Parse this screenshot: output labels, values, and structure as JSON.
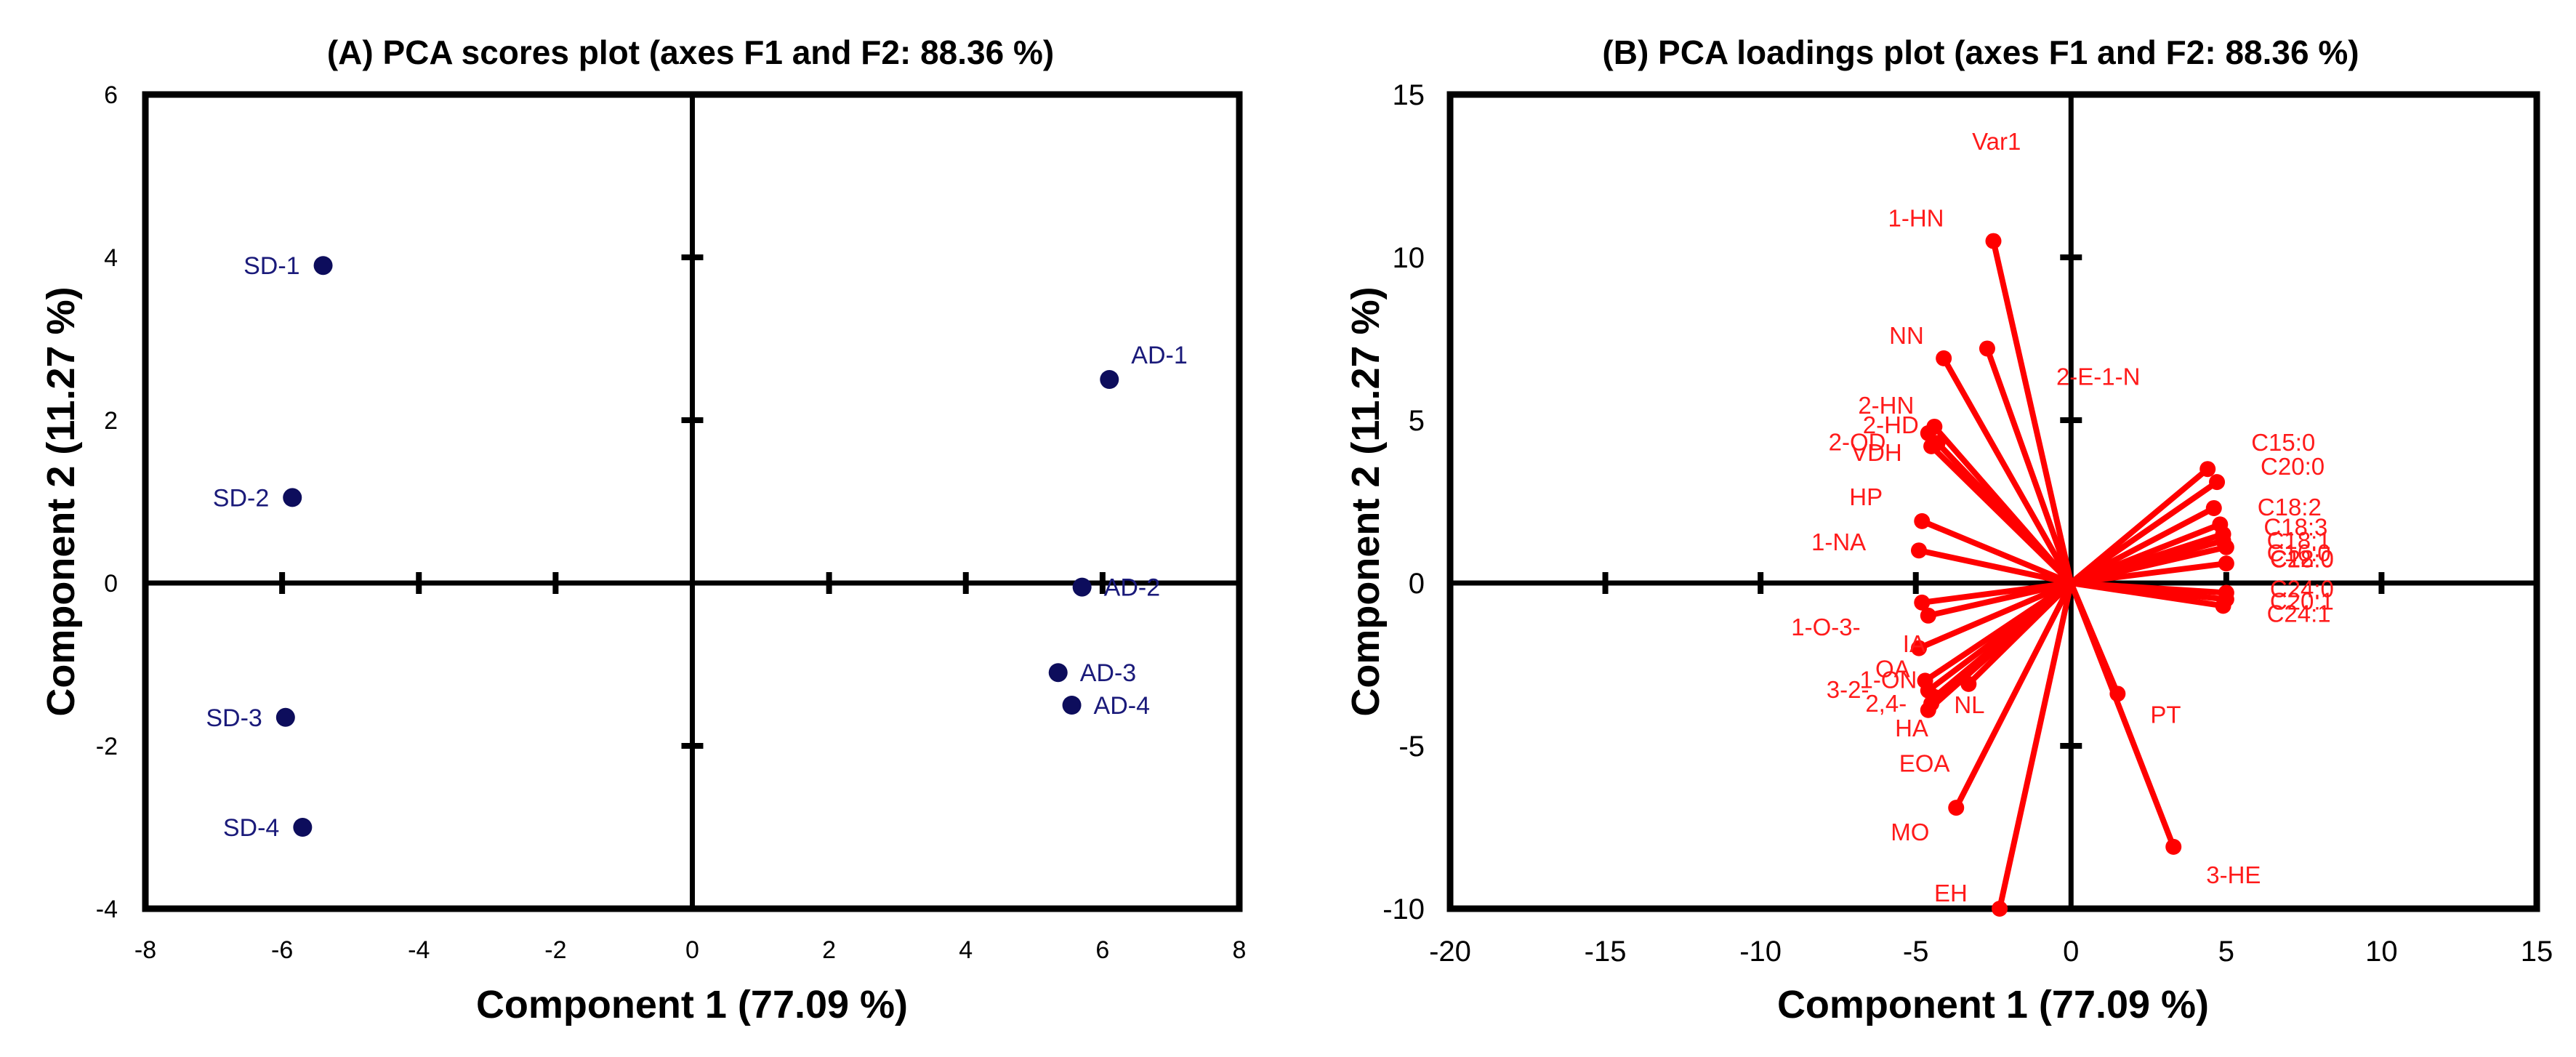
{
  "chart_data": [
    {
      "type": "scatter",
      "title": "(A) PCA scores plot (axes F1 and F2: 88.36 %)",
      "xlabel": "Component 1 (77.09 %)",
      "ylabel": "Component 2 (11.27 %)",
      "xlim": [
        -8,
        8
      ],
      "ylim": [
        -4,
        6
      ],
      "xticks": [
        "-8",
        "-6",
        "-4",
        "-2",
        "0",
        "2",
        "4",
        "6",
        "8"
      ],
      "yticks": [
        "-4",
        "-2",
        "0",
        "2",
        "4",
        "6"
      ],
      "xtick_values": [
        -8,
        -6,
        -4,
        -2,
        0,
        2,
        4,
        6,
        8
      ],
      "ytick_values": [
        -4,
        -2,
        0,
        2,
        4,
        6
      ],
      "color": "#0d0d5c",
      "points": [
        {
          "label": "SD-1",
          "x": -5.4,
          "y": 3.9
        },
        {
          "label": "SD-2",
          "x": -5.85,
          "y": 1.05
        },
        {
          "label": "SD-3",
          "x": -5.95,
          "y": -1.65
        },
        {
          "label": "SD-4",
          "x": -5.7,
          "y": -3.0
        },
        {
          "label": "AD-1",
          "x": 6.1,
          "y": 2.5
        },
        {
          "label": "AD-2",
          "x": 5.7,
          "y": -0.05
        },
        {
          "label": "AD-3",
          "x": 5.35,
          "y": -1.1
        },
        {
          "label": "AD-4",
          "x": 5.55,
          "y": -1.5
        }
      ]
    },
    {
      "type": "scatter",
      "title": "(B) PCA loadings plot (axes F1 and F2: 88.36 %)",
      "xlabel": "Component 1 (77.09 %)",
      "ylabel": "Component 2 (11.27 %)",
      "xlim": [
        -20,
        15
      ],
      "ylim": [
        -10,
        15
      ],
      "xticks": [
        "-20",
        "-15",
        "-10",
        "-5",
        "0",
        "5",
        "10",
        "15"
      ],
      "yticks": [
        "-10",
        "-5",
        "0",
        "5",
        "10",
        "15"
      ],
      "xtick_values": [
        -20,
        -15,
        -10,
        -5,
        0,
        5,
        10,
        15
      ],
      "ytick_values": [
        -10,
        -5,
        0,
        5,
        10,
        15
      ],
      "color": "#ff0000",
      "loadings": [
        {
          "label": "Var1",
          "x": -2.4,
          "y": 10.4
        },
        {
          "label": "1-HN",
          "x": -2.5,
          "y": 10.5
        },
        {
          "label": "2-E-1-N",
          "x": -2.7,
          "y": 7.2
        },
        {
          "label": "NN",
          "x": -4.1,
          "y": 6.9
        },
        {
          "label": "2-HN",
          "x": -4.4,
          "y": 4.8
        },
        {
          "label": "2-HD",
          "x": -4.6,
          "y": 4.6
        },
        {
          "label": "2-OD",
          "x": -4.3,
          "y": 4.3
        },
        {
          "label": "VDH",
          "x": -4.5,
          "y": 4.2
        },
        {
          "label": "HP",
          "x": -4.8,
          "y": 1.9
        },
        {
          "label": "1-NA",
          "x": -4.9,
          "y": 1.0
        },
        {
          "label": "1-O-3-",
          "x": -4.8,
          "y": -0.6
        },
        {
          "label": "IA",
          "x": -4.6,
          "y": -1.0
        },
        {
          "label": "OA",
          "x": -4.9,
          "y": -2.0
        },
        {
          "label": "1-ON",
          "x": -4.7,
          "y": -3.0
        },
        {
          "label": "3-2-",
          "x": -4.6,
          "y": -3.3
        },
        {
          "label": "2,4-",
          "x": -4.4,
          "y": -3.5
        },
        {
          "label": "HA",
          "x": -4.5,
          "y": -3.7
        },
        {
          "label": "NL",
          "x": -3.3,
          "y": -3.1
        },
        {
          "label": "EOA",
          "x": -4.6,
          "y": -3.9
        },
        {
          "label": "MO",
          "x": -3.7,
          "y": -6.9
        },
        {
          "label": "EH",
          "x": -2.3,
          "y": -10.0
        },
        {
          "label": "PT",
          "x": 1.5,
          "y": -3.4
        },
        {
          "label": "3-HE",
          "x": 3.3,
          "y": -8.1
        },
        {
          "label": "C15:0",
          "x": 4.4,
          "y": 3.5
        },
        {
          "label": "C20:0",
          "x": 4.7,
          "y": 3.1
        },
        {
          "label": "C18:2",
          "x": 4.6,
          "y": 2.3
        },
        {
          "label": "C18:3",
          "x": 4.8,
          "y": 1.8
        },
        {
          "label": "C18:1",
          "x": 4.9,
          "y": 1.5
        },
        {
          "label": "C16:0",
          "x": 4.9,
          "y": 1.3
        },
        {
          "label": "C18:0",
          "x": 5.0,
          "y": 1.1
        },
        {
          "label": "C22:0",
          "x": 5.0,
          "y": 0.6
        },
        {
          "label": "C24:0",
          "x": 5.0,
          "y": -0.3
        },
        {
          "label": "C20:1",
          "x": 5.0,
          "y": -0.5
        },
        {
          "label": "C24:1",
          "x": 4.9,
          "y": -0.7
        }
      ],
      "label_texts": [
        "Var1",
        "1-HN",
        "2-E-1-N",
        "NN",
        "2-HN",
        "2-HD",
        "2-OD",
        "VDH",
        "HP",
        "1-NA",
        "1-O-3-",
        "IA",
        "OA",
        "1-ON",
        "3-2-",
        "2,4-",
        "HA",
        "NL",
        "EOA",
        "MO",
        "EH",
        "PT",
        "3-HE",
        "C15:0",
        "C20:0",
        "C18:2",
        "C18:3",
        "C18:1",
        "C16:0",
        "C18:0",
        "C22:0",
        "C24:0",
        "C20:1",
        "C24:1"
      ]
    }
  ]
}
